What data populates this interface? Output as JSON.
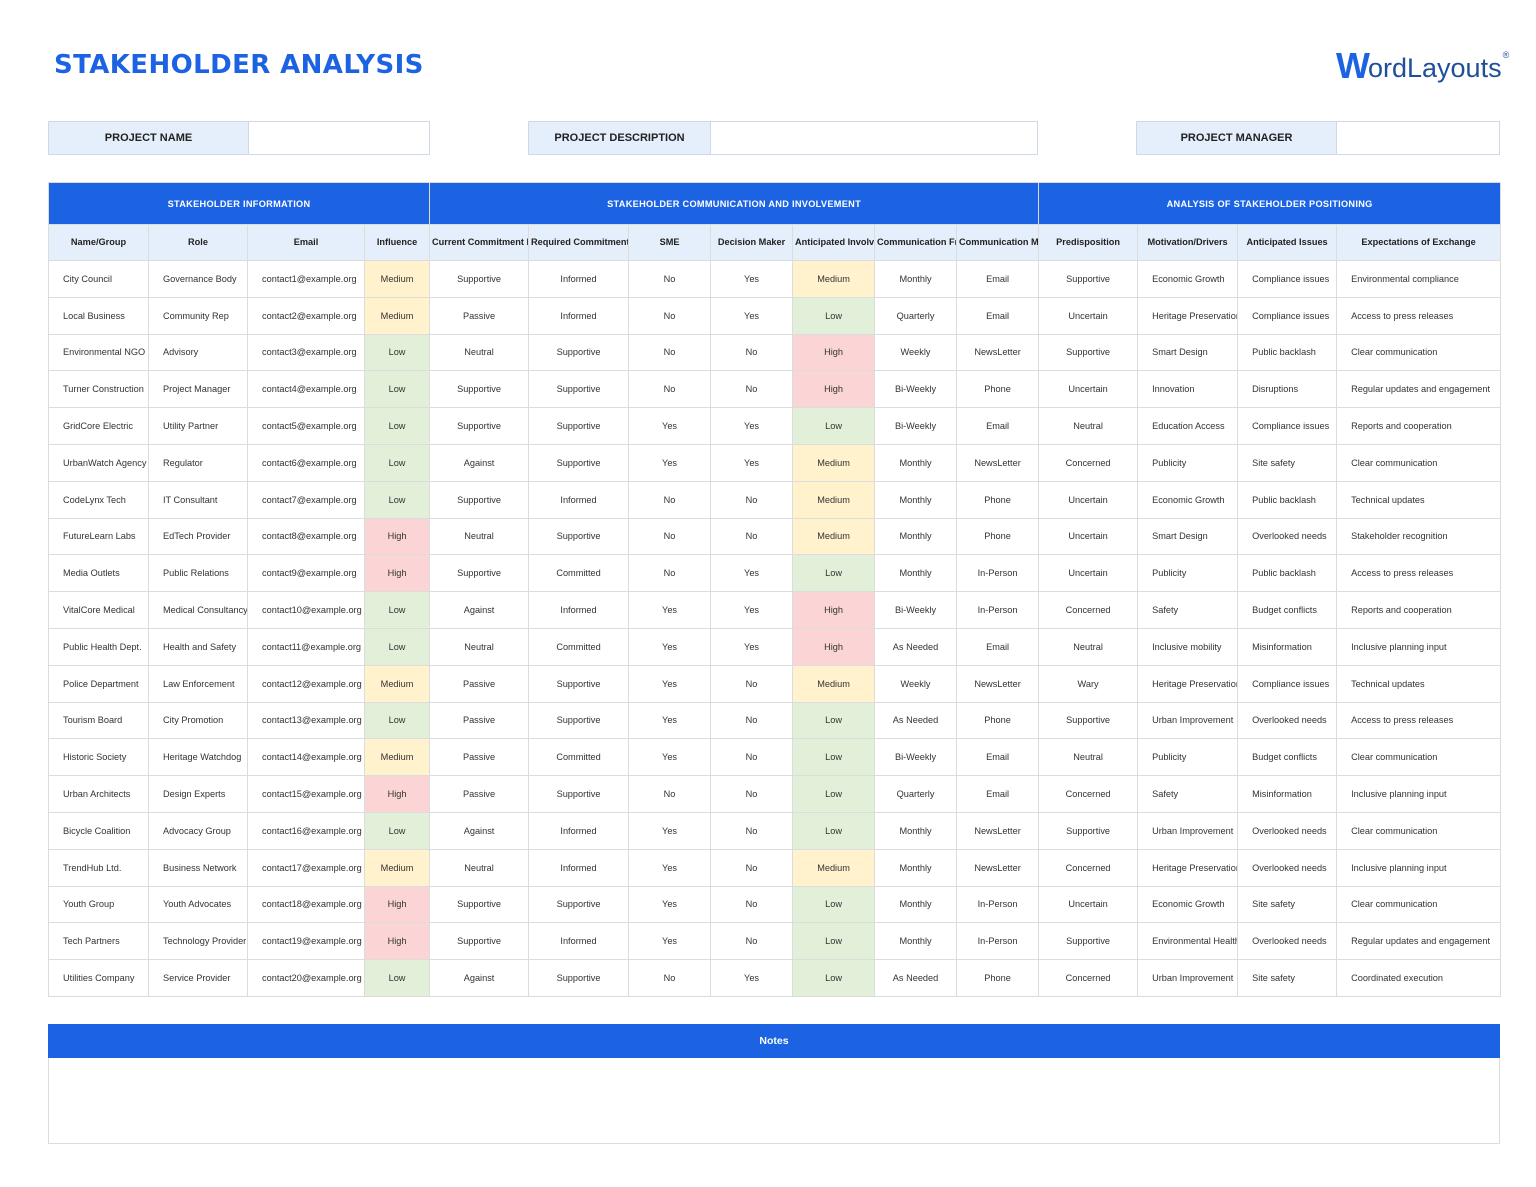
{
  "header": {
    "title": "STAKEHOLDER ANALYSIS",
    "logo": {
      "w": "W",
      "rest": "ordLayouts",
      "reg": "®"
    }
  },
  "meta": {
    "project_name": {
      "label": "PROJECT NAME",
      "value": ""
    },
    "project_description": {
      "label": "PROJECT DESCRIPTION",
      "value": ""
    },
    "project_manager": {
      "label": "PROJECT MANAGER",
      "value": ""
    }
  },
  "table": {
    "groups": [
      "STAKEHOLDER INFORMATION",
      "STAKEHOLDER COMMUNICATION AND INVOLVEMENT",
      "ANALYSIS OF STAKEHOLDER POSITIONING"
    ],
    "columns": [
      "Name/Group",
      "Role",
      "Email",
      "Influence",
      "Current Commitment Level",
      "Required Commitment Level",
      "SME",
      "Decision Maker",
      "Anticipated Involvement",
      "Communication Frequency",
      "Communication Method",
      "Predisposition",
      "Motivation/Drivers",
      "Anticipated Issues",
      "Expectations of Exchange"
    ],
    "rows": [
      [
        "City Council",
        "Governance Body",
        "contact1@example.org",
        "Medium",
        "Supportive",
        "Informed",
        "No",
        "Yes",
        "Medium",
        "Monthly",
        "Email",
        "Supportive",
        "Economic Growth",
        "Compliance issues",
        "Environmental compliance"
      ],
      [
        "Local Business",
        "Community Rep",
        "contact2@example.org",
        "Medium",
        "Passive",
        "Informed",
        "No",
        "Yes",
        "Low",
        "Quarterly",
        "Email",
        "Uncertain",
        "Heritage Preservation",
        "Compliance issues",
        "Access to press releases"
      ],
      [
        "Environmental NGO",
        "Advisory",
        "contact3@example.org",
        "Low",
        "Neutral",
        "Supportive",
        "No",
        "No",
        "High",
        "Weekly",
        "NewsLetter",
        "Supportive",
        "Smart Design",
        "Public backlash",
        "Clear communication"
      ],
      [
        "Turner Construction",
        "Project Manager",
        "contact4@example.org",
        "Low",
        "Supportive",
        "Supportive",
        "No",
        "No",
        "High",
        "Bi-Weekly",
        "Phone",
        "Uncertain",
        "Innovation",
        "Disruptions",
        "Regular updates and engagement"
      ],
      [
        "GridCore Electric",
        "Utility Partner",
        "contact5@example.org",
        "Low",
        "Supportive",
        "Supportive",
        "Yes",
        "Yes",
        "Low",
        "Bi-Weekly",
        "Email",
        "Neutral",
        "Education Access",
        "Compliance issues",
        "Reports and cooperation"
      ],
      [
        "UrbanWatch Agency",
        "Regulator",
        "contact6@example.org",
        "Low",
        "Against",
        "Supportive",
        "Yes",
        "Yes",
        "Medium",
        "Monthly",
        "NewsLetter",
        "Concerned",
        "Publicity",
        "Site safety",
        "Clear communication"
      ],
      [
        "CodeLynx Tech",
        "IT Consultant",
        "contact7@example.org",
        "Low",
        "Supportive",
        "Informed",
        "No",
        "No",
        "Medium",
        "Monthly",
        "Phone",
        "Uncertain",
        "Economic Growth",
        "Public backlash",
        "Technical updates"
      ],
      [
        "FutureLearn Labs",
        "EdTech Provider",
        "contact8@example.org",
        "High",
        "Neutral",
        "Supportive",
        "No",
        "No",
        "Medium",
        "Monthly",
        "Phone",
        "Uncertain",
        "Smart Design",
        "Overlooked needs",
        "Stakeholder recognition"
      ],
      [
        "Media Outlets",
        "Public Relations",
        "contact9@example.org",
        "High",
        "Supportive",
        "Committed",
        "No",
        "Yes",
        "Low",
        "Monthly",
        "In-Person",
        "Uncertain",
        "Publicity",
        "Public backlash",
        "Access to press releases"
      ],
      [
        "VitalCore Medical",
        "Medical Consultancy",
        "contact10@example.org",
        "Low",
        "Against",
        "Informed",
        "Yes",
        "Yes",
        "High",
        "Bi-Weekly",
        "In-Person",
        "Concerned",
        "Safety",
        "Budget conflicts",
        "Reports and cooperation"
      ],
      [
        "Public Health Dept.",
        "Health and Safety",
        "contact11@example.org",
        "Low",
        "Neutral",
        "Committed",
        "Yes",
        "Yes",
        "High",
        "As Needed",
        "Email",
        "Neutral",
        "Inclusive mobility",
        "Misinformation",
        "Inclusive planning input"
      ],
      [
        "Police Department",
        "Law Enforcement",
        "contact12@example.org",
        "Medium",
        "Passive",
        "Supportive",
        "Yes",
        "No",
        "Medium",
        "Weekly",
        "NewsLetter",
        "Wary",
        "Heritage Preservation",
        "Compliance issues",
        "Technical updates"
      ],
      [
        "Tourism Board",
        "City Promotion",
        "contact13@example.org",
        "Low",
        "Passive",
        "Supportive",
        "Yes",
        "No",
        "Low",
        "As Needed",
        "Phone",
        "Supportive",
        "Urban Improvement",
        "Overlooked needs",
        "Access to press releases"
      ],
      [
        "Historic Society",
        "Heritage Watchdog",
        "contact14@example.org",
        "Medium",
        "Passive",
        "Committed",
        "Yes",
        "No",
        "Low",
        "Bi-Weekly",
        "Email",
        "Neutral",
        "Publicity",
        "Budget conflicts",
        "Clear communication"
      ],
      [
        "Urban Architects",
        "Design Experts",
        "contact15@example.org",
        "High",
        "Passive",
        "Supportive",
        "No",
        "No",
        "Low",
        "Quarterly",
        "Email",
        "Concerned",
        "Safety",
        "Misinformation",
        "Inclusive planning input"
      ],
      [
        "Bicycle Coalition",
        "Advocacy Group",
        "contact16@example.org",
        "Low",
        "Against",
        "Informed",
        "Yes",
        "No",
        "Low",
        "Monthly",
        "NewsLetter",
        "Supportive",
        "Urban Improvement",
        "Overlooked needs",
        "Clear communication"
      ],
      [
        "TrendHub Ltd.",
        "Business Network",
        "contact17@example.org",
        "Medium",
        "Neutral",
        "Informed",
        "Yes",
        "No",
        "Medium",
        "Monthly",
        "NewsLetter",
        "Concerned",
        "Heritage Preservation",
        "Overlooked needs",
        "Inclusive planning input"
      ],
      [
        "Youth Group",
        "Youth Advocates",
        "contact18@example.org",
        "High",
        "Supportive",
        "Supportive",
        "Yes",
        "No",
        "Low",
        "Monthly",
        "In-Person",
        "Uncertain",
        "Economic Growth",
        "Site safety",
        "Clear communication"
      ],
      [
        "Tech Partners",
        "Technology Provider",
        "contact19@example.org",
        "High",
        "Supportive",
        "Informed",
        "Yes",
        "No",
        "Low",
        "Monthly",
        "In-Person",
        "Supportive",
        "Environmental Health",
        "Overlooked needs",
        "Regular updates and engagement"
      ],
      [
        "Utilities Company",
        "Service Provider",
        "contact20@example.org",
        "Low",
        "Against",
        "Supportive",
        "No",
        "Yes",
        "Low",
        "As Needed",
        "Phone",
        "Concerned",
        "Urban Improvement",
        "Site safety",
        "Coordinated execution"
      ]
    ]
  },
  "level_colors": {
    "Low": "#e2efd9",
    "Medium": "#fff2cc",
    "High": "#fbd5d5"
  },
  "accent_color": "#1c63e3",
  "notes": {
    "label": "Notes",
    "value": ""
  }
}
